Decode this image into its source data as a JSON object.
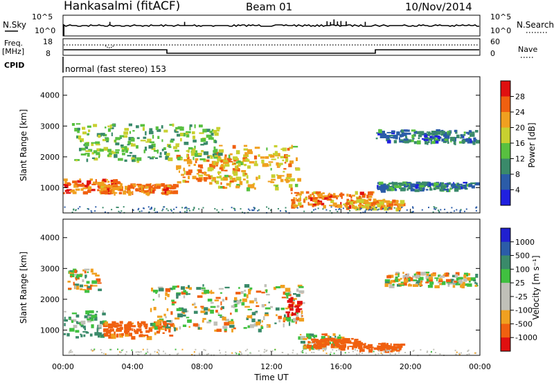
{
  "header": {
    "station": "Hankasalmi (fitACF)",
    "beam": "Beam 01",
    "date": "10/Nov/2014"
  },
  "noise_panel": {
    "left_label": "N.Sky",
    "left_ticks": [
      "10^5",
      "10^0"
    ],
    "right_label": "N.Search",
    "right_ticks": [
      "10^5",
      "10^0"
    ],
    "spikes_hours": [
      2.7,
      7.0,
      15.2,
      15.4,
      15.6,
      15.8,
      16.0,
      16.3,
      17.4
    ]
  },
  "freq_panel": {
    "left_label_top": "Freq.",
    "left_label_bottom": "[MHz]",
    "left_ticks": [
      "18",
      "8"
    ],
    "right_label": "Nave",
    "right_ticks": [
      "60",
      "0"
    ]
  },
  "cpid": {
    "label": "CPID",
    "text": "normal (fast stereo) 153"
  },
  "colors": {
    "power": [
      "#2020e0",
      "#2b5ca8",
      "#3a8a6a",
      "#58c040",
      "#c8d030",
      "#f0a020",
      "#f06010",
      "#e01010"
    ],
    "velocity": [
      "#e01010",
      "#f06010",
      "#f0a020",
      "#c0c0b8",
      "#c0c0b8",
      "#40c040",
      "#3a8a6a",
      "#2b5ca8",
      "#2020d0"
    ]
  },
  "chart_data": [
    {
      "type": "heatmap",
      "name": "power",
      "xlabel": "",
      "ylabel": "Slant Range [km]",
      "x_range_hours": [
        0,
        24
      ],
      "ylim": [
        180,
        4600
      ],
      "yticks": [
        1000,
        2000,
        3000,
        4000
      ],
      "colorbar_label": "Power [dB]",
      "colorbar_ticks": [
        "4",
        "8",
        "12",
        "16",
        "20",
        "24",
        "28"
      ],
      "colorbar_range": [
        0,
        32
      ],
      "features": [
        {
          "t0": 0.0,
          "t1": 3.2,
          "r0": 850,
          "r1": 1300,
          "value": 26
        },
        {
          "t0": 2.0,
          "t1": 6.5,
          "r0": 850,
          "r1": 1150,
          "value": 24
        },
        {
          "t0": 6.5,
          "t1": 10.5,
          "r0": 1150,
          "r1": 2100,
          "value": 22
        },
        {
          "t0": 8.5,
          "t1": 13.5,
          "r0": 1000,
          "r1": 2400,
          "value": 20
        },
        {
          "t0": 13.0,
          "t1": 17.8,
          "r0": 400,
          "r1": 900,
          "value": 24
        },
        {
          "t0": 16.5,
          "t1": 19.5,
          "r0": 350,
          "r1": 650,
          "value": 22
        },
        {
          "t0": 18.0,
          "t1": 23.8,
          "r0": 2500,
          "r1": 2900,
          "value": 8
        },
        {
          "t0": 18.0,
          "t1": 23.8,
          "r0": 950,
          "r1": 1200,
          "value": 8
        },
        {
          "t0": 0.5,
          "t1": 9.0,
          "r0": 1900,
          "r1": 3100,
          "value": 14
        }
      ]
    },
    {
      "type": "heatmap",
      "name": "velocity",
      "xlabel": "Time UT",
      "ylabel": "Slant Range [km]",
      "x_range_hours": [
        0,
        24
      ],
      "xticks": [
        "00:00",
        "04:00",
        "08:00",
        "12:00",
        "16:00",
        "20:00",
        "00:00"
      ],
      "ylim": [
        180,
        4600
      ],
      "yticks": [
        1000,
        2000,
        3000,
        4000
      ],
      "colorbar_label": "Velocity [m s⁻¹]",
      "colorbar_ticks": [
        "1000",
        "500",
        "100",
        "25",
        "-25",
        "-100",
        "-500",
        "-1000"
      ],
      "features": [
        {
          "t0": 0.0,
          "t1": 2.3,
          "r0": 800,
          "r1": 1650,
          "value": 150
        },
        {
          "t0": 2.3,
          "t1": 6.2,
          "r0": 800,
          "r1": 1300,
          "value": -200
        },
        {
          "t0": 5.0,
          "t1": 13.8,
          "r0": 1000,
          "r1": 2500,
          "value": 0
        },
        {
          "t0": 13.5,
          "t1": 16.0,
          "r0": 400,
          "r1": 900,
          "value": 0
        },
        {
          "t0": 14.0,
          "t1": 17.0,
          "r0": 480,
          "r1": 750,
          "value": -300
        },
        {
          "t0": 17.0,
          "t1": 19.5,
          "r0": 380,
          "r1": 600,
          "value": -300
        },
        {
          "t0": 18.5,
          "t1": 23.8,
          "r0": 2450,
          "r1": 2900,
          "value": 0
        },
        {
          "t0": 0.2,
          "t1": 2.0,
          "r0": 2300,
          "r1": 3000,
          "value": 0
        },
        {
          "t0": 12.8,
          "t1": 13.6,
          "r0": 1500,
          "r1": 2100,
          "value": -800
        }
      ]
    }
  ]
}
